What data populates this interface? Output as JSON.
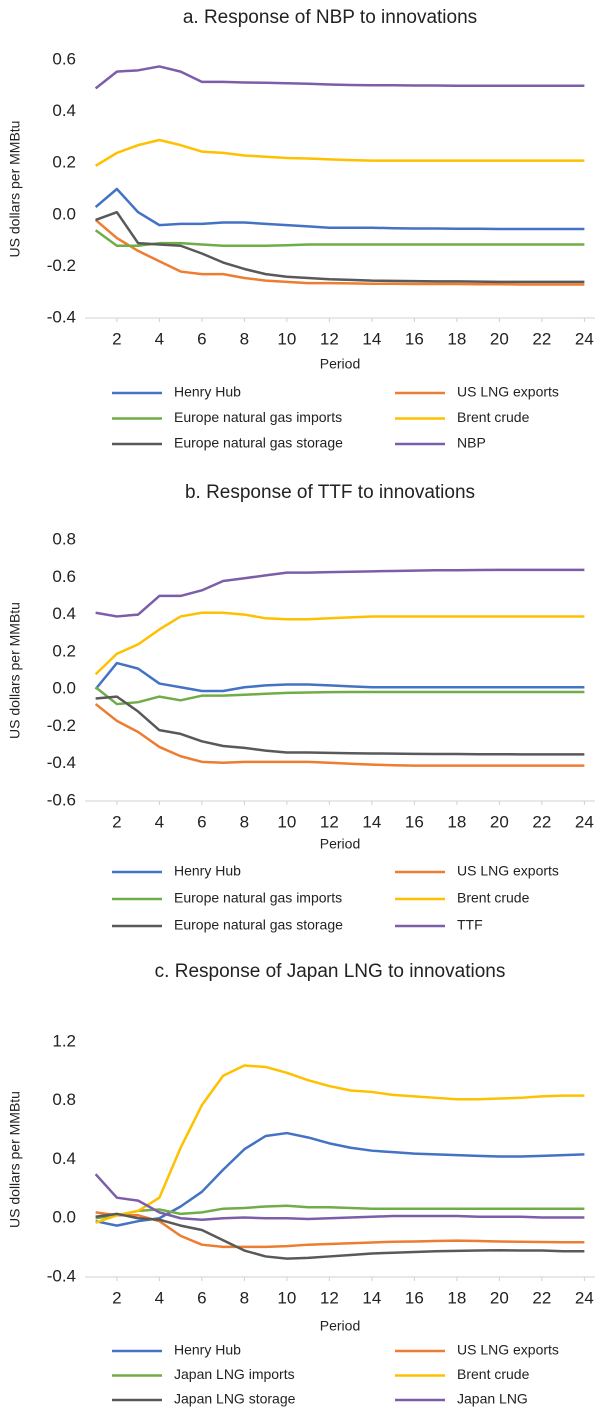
{
  "chart_data": [
    {
      "type": "line",
      "title": "a. Response of NBP to innovations",
      "x_label": "Period",
      "y_label": "US dollars per MMBtu",
      "x": [
        1,
        2,
        3,
        4,
        5,
        6,
        7,
        8,
        9,
        10,
        11,
        12,
        13,
        14,
        15,
        16,
        17,
        18,
        19,
        20,
        21,
        22,
        23,
        24
      ],
      "xlim": [
        0.5,
        24.5
      ],
      "xticks": [
        2,
        4,
        6,
        8,
        10,
        12,
        14,
        16,
        18,
        20,
        22,
        24
      ],
      "ylim": [
        -0.4,
        0.6
      ],
      "yticks": [
        -0.4,
        -0.2,
        {
          "value": 0,
          "label": "0.0"
        },
        0.2,
        0.4,
        0.6
      ],
      "grid": false,
      "series": [
        {
          "name": "Henry Hub",
          "color": "#4472c4",
          "values": [
            0.03,
            0.1,
            0.01,
            -0.04,
            -0.035,
            -0.035,
            -0.03,
            -0.03,
            -0.035,
            -0.04,
            -0.045,
            -0.05,
            -0.05,
            -0.05,
            -0.052,
            -0.053,
            -0.053,
            -0.054,
            -0.054,
            -0.055,
            -0.055,
            -0.055,
            -0.055,
            -0.055
          ]
        },
        {
          "name": "US LNG exports",
          "color": "#ed7d31",
          "values": [
            -0.02,
            -0.09,
            -0.14,
            -0.18,
            -0.22,
            -0.23,
            -0.23,
            -0.245,
            -0.255,
            -0.26,
            -0.265,
            -0.265,
            -0.266,
            -0.267,
            -0.267,
            -0.268,
            -0.268,
            -0.268,
            -0.269,
            -0.269,
            -0.27,
            -0.27,
            -0.27,
            -0.27
          ]
        },
        {
          "name": "Europe natural gas imports",
          "color": "#70ad47",
          "values": [
            -0.06,
            -0.12,
            -0.12,
            -0.11,
            -0.11,
            -0.115,
            -0.12,
            -0.12,
            -0.12,
            -0.118,
            -0.115,
            -0.115,
            -0.115,
            -0.115,
            -0.115,
            -0.115,
            -0.115,
            -0.115,
            -0.115,
            -0.115,
            -0.115,
            -0.115,
            -0.115,
            -0.115
          ]
        },
        {
          "name": "Brent crude",
          "color": "#ffc000",
          "values": [
            0.19,
            0.24,
            0.27,
            0.29,
            0.27,
            0.245,
            0.24,
            0.23,
            0.225,
            0.22,
            0.218,
            0.215,
            0.212,
            0.21,
            0.21,
            0.21,
            0.21,
            0.21,
            0.21,
            0.21,
            0.21,
            0.21,
            0.21,
            0.21
          ]
        },
        {
          "name": "Europe natural gas storage",
          "color": "#595959",
          "values": [
            -0.02,
            0.01,
            -0.11,
            -0.115,
            -0.12,
            -0.15,
            -0.185,
            -0.21,
            -0.23,
            -0.24,
            -0.245,
            -0.25,
            -0.252,
            -0.255,
            -0.256,
            -0.257,
            -0.258,
            -0.258,
            -0.259,
            -0.26,
            -0.26,
            -0.26,
            -0.26,
            -0.26
          ]
        },
        {
          "name": "NBP",
          "color": "#7b5ea7",
          "values": [
            0.49,
            0.555,
            0.56,
            0.575,
            0.555,
            0.515,
            0.515,
            0.513,
            0.512,
            0.51,
            0.508,
            0.505,
            0.503,
            0.502,
            0.502,
            0.501,
            0.501,
            0.5,
            0.5,
            0.5,
            0.5,
            0.5,
            0.5,
            0.5
          ]
        }
      ]
    },
    {
      "type": "line",
      "title": "b. Response of TTF to innovations",
      "x_label": "Period",
      "y_label": "US dollars per MMBtu",
      "x": [
        1,
        2,
        3,
        4,
        5,
        6,
        7,
        8,
        9,
        10,
        11,
        12,
        13,
        14,
        15,
        16,
        17,
        18,
        19,
        20,
        21,
        22,
        23,
        24
      ],
      "xlim": [
        0.5,
        24.5
      ],
      "xticks": [
        2,
        4,
        6,
        8,
        10,
        12,
        14,
        16,
        18,
        20,
        22,
        24
      ],
      "ylim": [
        -0.6,
        0.8
      ],
      "yticks": [
        -0.6,
        -0.4,
        -0.2,
        {
          "value": 0,
          "label": "0.0"
        },
        0.2,
        0.4,
        0.6,
        0.8
      ],
      "grid": false,
      "series": [
        {
          "name": "Henry Hub",
          "color": "#4472c4",
          "values": [
            0.0,
            0.14,
            0.11,
            0.03,
            0.01,
            -0.01,
            -0.01,
            0.01,
            0.02,
            0.025,
            0.025,
            0.02,
            0.015,
            0.01,
            0.01,
            0.01,
            0.01,
            0.01,
            0.01,
            0.01,
            0.01,
            0.01,
            0.01,
            0.01
          ]
        },
        {
          "name": "US LNG exports",
          "color": "#ed7d31",
          "values": [
            -0.08,
            -0.17,
            -0.23,
            -0.31,
            -0.36,
            -0.39,
            -0.395,
            -0.39,
            -0.39,
            -0.39,
            -0.39,
            -0.395,
            -0.4,
            -0.405,
            -0.408,
            -0.41,
            -0.41,
            -0.41,
            -0.41,
            -0.41,
            -0.41,
            -0.41,
            -0.41,
            -0.41
          ]
        },
        {
          "name": "Europe natural gas imports",
          "color": "#70ad47",
          "values": [
            0.01,
            -0.08,
            -0.07,
            -0.04,
            -0.06,
            -0.035,
            -0.035,
            -0.03,
            -0.025,
            -0.02,
            -0.018,
            -0.016,
            -0.015,
            -0.015,
            -0.015,
            -0.015,
            -0.015,
            -0.015,
            -0.015,
            -0.015,
            -0.015,
            -0.015,
            -0.015,
            -0.015
          ]
        },
        {
          "name": "Brent crude",
          "color": "#ffc000",
          "values": [
            0.08,
            0.19,
            0.24,
            0.32,
            0.39,
            0.41,
            0.41,
            0.4,
            0.38,
            0.375,
            0.375,
            0.38,
            0.385,
            0.39,
            0.39,
            0.39,
            0.39,
            0.39,
            0.39,
            0.39,
            0.39,
            0.39,
            0.39,
            0.39
          ]
        },
        {
          "name": "Europe natural gas storage",
          "color": "#595959",
          "values": [
            -0.05,
            -0.04,
            -0.12,
            -0.22,
            -0.24,
            -0.28,
            -0.305,
            -0.315,
            -0.33,
            -0.34,
            -0.34,
            -0.342,
            -0.344,
            -0.345,
            -0.346,
            -0.347,
            -0.348,
            -0.348,
            -0.349,
            -0.349,
            -0.35,
            -0.35,
            -0.35,
            -0.35
          ]
        },
        {
          "name": "TTF",
          "color": "#7b5ea7",
          "values": [
            0.41,
            0.39,
            0.4,
            0.5,
            0.5,
            0.53,
            0.58,
            0.595,
            0.61,
            0.625,
            0.625,
            0.628,
            0.63,
            0.632,
            0.634,
            0.636,
            0.638,
            0.638,
            0.639,
            0.64,
            0.64,
            0.64,
            0.64,
            0.64
          ]
        }
      ]
    },
    {
      "type": "line",
      "title": "c. Response of Japan LNG to innovations",
      "x_label": "Period",
      "y_label": "US dollars per MMBtu",
      "x": [
        1,
        2,
        3,
        4,
        5,
        6,
        7,
        8,
        9,
        10,
        11,
        12,
        13,
        14,
        15,
        16,
        17,
        18,
        19,
        20,
        21,
        22,
        23,
        24
      ],
      "xlim": [
        0.5,
        24.5
      ],
      "xticks": [
        2,
        4,
        6,
        8,
        10,
        12,
        14,
        16,
        18,
        20,
        22,
        24
      ],
      "ylim": [
        -0.4,
        1.2
      ],
      "yticks": [
        -0.4,
        {
          "value": 0,
          "label": "0.0"
        },
        0.4,
        0.8,
        1.2
      ],
      "grid": false,
      "series": [
        {
          "name": "Henry Hub",
          "color": "#4472c4",
          "values": [
            -0.02,
            -0.05,
            -0.02,
            0.0,
            0.08,
            0.18,
            0.33,
            0.47,
            0.56,
            0.58,
            0.55,
            0.51,
            0.48,
            0.46,
            0.45,
            0.44,
            0.435,
            0.43,
            0.425,
            0.42,
            0.42,
            0.425,
            0.43,
            0.435
          ]
        },
        {
          "name": "US LNG exports",
          "color": "#ed7d31",
          "values": [
            0.04,
            0.02,
            0.02,
            -0.02,
            -0.12,
            -0.18,
            -0.195,
            -0.195,
            -0.195,
            -0.19,
            -0.18,
            -0.175,
            -0.17,
            -0.165,
            -0.16,
            -0.158,
            -0.155,
            -0.152,
            -0.155,
            -0.158,
            -0.16,
            -0.162,
            -0.163,
            -0.163
          ]
        },
        {
          "name": "Japan LNG imports",
          "color": "#70ad47",
          "values": [
            0.0,
            0.02,
            0.05,
            0.06,
            0.03,
            0.04,
            0.065,
            0.07,
            0.08,
            0.085,
            0.075,
            0.075,
            0.07,
            0.065,
            0.065,
            0.065,
            0.065,
            0.065,
            0.065,
            0.065,
            0.065,
            0.065,
            0.065,
            0.065
          ]
        },
        {
          "name": "Brent crude",
          "color": "#ffc000",
          "values": [
            -0.03,
            0.02,
            0.05,
            0.14,
            0.48,
            0.77,
            0.97,
            1.04,
            1.03,
            0.99,
            0.94,
            0.9,
            0.87,
            0.86,
            0.84,
            0.83,
            0.82,
            0.81,
            0.81,
            0.815,
            0.82,
            0.83,
            0.835,
            0.835
          ]
        },
        {
          "name": "Japan LNG storage",
          "color": "#595959",
          "values": [
            0.01,
            0.03,
            0.0,
            -0.01,
            -0.05,
            -0.08,
            -0.15,
            -0.22,
            -0.26,
            -0.275,
            -0.27,
            -0.26,
            -0.25,
            -0.24,
            -0.235,
            -0.23,
            -0.225,
            -0.222,
            -0.22,
            -0.218,
            -0.22,
            -0.22,
            -0.225,
            -0.225
          ]
        },
        {
          "name": "Japan LNG",
          "color": "#7b5ea7",
          "values": [
            0.3,
            0.14,
            0.12,
            0.04,
            0.0,
            -0.01,
            0.0,
            0.005,
            0.0,
            0.0,
            -0.005,
            0.0,
            0.005,
            0.01,
            0.015,
            0.015,
            0.015,
            0.015,
            0.01,
            0.01,
            0.01,
            0.005,
            0.005,
            0.005
          ]
        }
      ]
    }
  ]
}
